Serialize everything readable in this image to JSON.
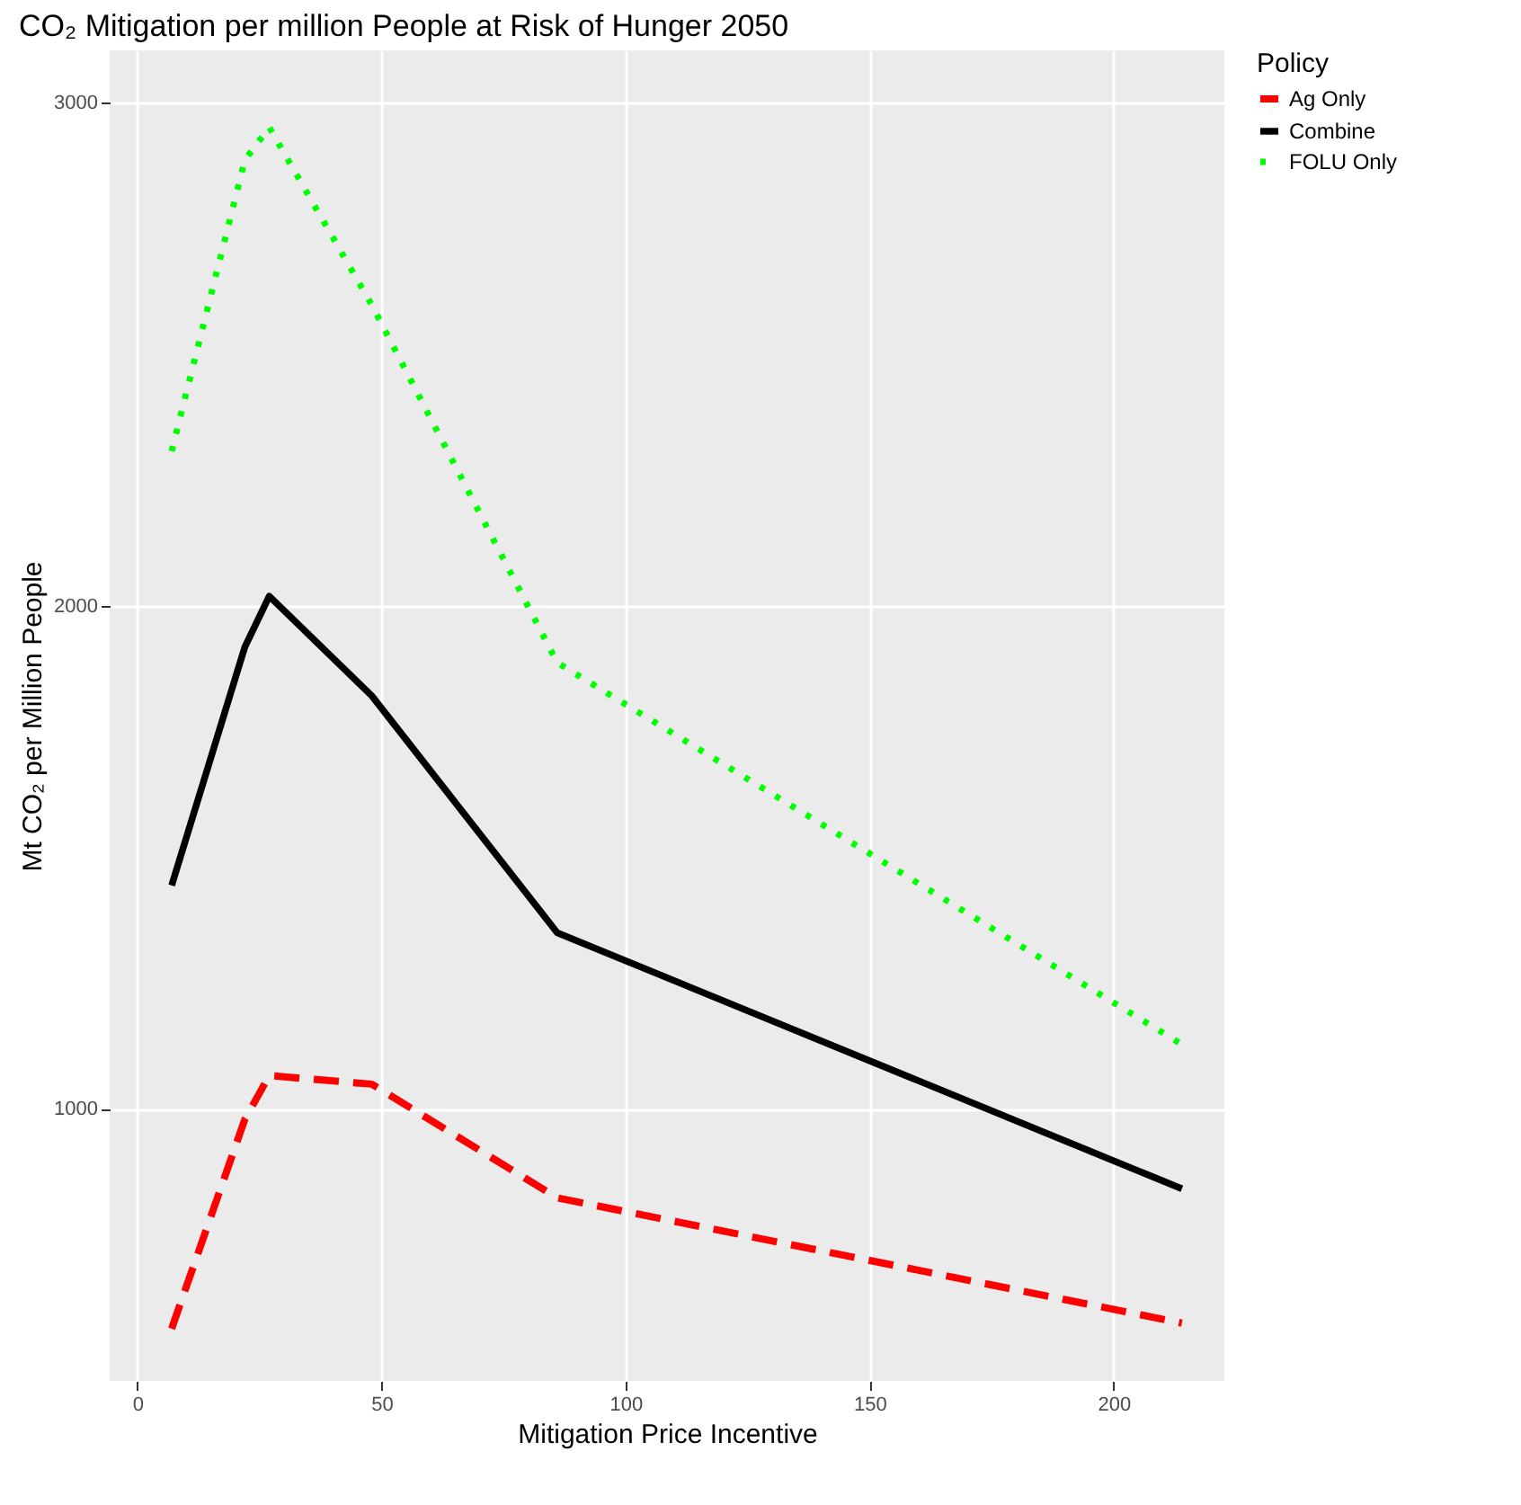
{
  "chart_data": {
    "type": "line",
    "title": "CO₂ Mitigation per million People at Risk of Hunger 2050",
    "xlabel": "Mitigation Price Incentive",
    "ylabel": "Mt CO₂ per Million People",
    "legend_title": "Policy",
    "x": [
      7,
      22,
      27,
      48,
      86,
      214
    ],
    "series": [
      {
        "name": "Ag Only",
        "color": "#ff0000",
        "line_style": "dashed",
        "values": [
          563,
          979,
          1066,
          1049,
          823,
          574
        ]
      },
      {
        "name": "Combine",
        "color": "#000000",
        "line_style": "solid",
        "values": [
          1444,
          1918,
          2019,
          1821,
          1350,
          841
        ]
      },
      {
        "name": "FOLU Only",
        "color": "#00ff00",
        "line_style": "dotted",
        "values": [
          2307,
          2886,
          2951,
          2598,
          1887,
          1128
        ]
      }
    ],
    "xlim": [
      -5.7,
      222.7
    ],
    "xticks": [
      0,
      50,
      100,
      150,
      200
    ],
    "ylim": [
      459,
      3104
    ],
    "yticks": [
      1000,
      2000,
      3000
    ],
    "grid": true,
    "legend": "right",
    "marker": "none"
  }
}
